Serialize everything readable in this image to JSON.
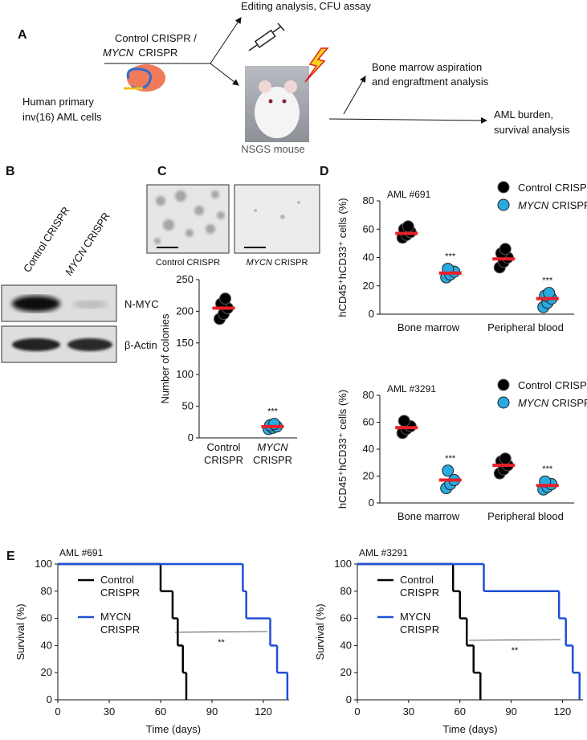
{
  "panel_labels": [
    "A",
    "B",
    "C",
    "D",
    "E"
  ],
  "schematic": {
    "treatment": [
      "Control CRISPR /",
      "MYCN",
      "CRISPR"
    ],
    "cells": [
      "Human primary",
      "inv(16) AML cells"
    ],
    "mouse": "NSGS mouse",
    "outcomes": [
      "Editing analysis, CFU assay",
      [
        "Bone marrow aspiration",
        "and engraftment analysis"
      ],
      [
        "AML burden,",
        "survival analysis"
      ]
    ]
  },
  "western_blot": {
    "lanes": [
      [
        "Control",
        "CRISPR"
      ],
      [
        "MYCN",
        "CRISPR"
      ]
    ],
    "bands": [
      "N-MYC",
      "β-Actin"
    ]
  },
  "micrographs": [
    [
      "Control",
      "CRISPR"
    ],
    [
      "MYCN",
      "CRISPR"
    ]
  ],
  "chart_data": [
    {
      "type": "dot",
      "ylabel": "Number of colonies",
      "categories": [
        [
          "Control",
          "CRISPR"
        ],
        [
          "MYCN",
          "CRISPR"
        ]
      ],
      "colors": [
        "#000000",
        "#29aae1"
      ],
      "values": [
        [
          188,
          196,
          205,
          212,
          220
        ],
        [
          14,
          16,
          18,
          20,
          22
        ]
      ],
      "means": [
        205,
        18
      ],
      "mean_color": "#e8202a",
      "significance": [
        null,
        "***"
      ],
      "ylim": [
        0,
        250
      ],
      "yticks": [
        0,
        50,
        100,
        150,
        200,
        250
      ]
    },
    {
      "type": "group-dot",
      "title": "AML #691",
      "ylabel": "hCD45⁺hCD33⁺ cells (%)",
      "categories": [
        "Bone marrow",
        "Peripheral blood"
      ],
      "mean_color": "#e8202a",
      "series": [
        {
          "name": [
            "Control",
            "CRISPR"
          ],
          "color": "#000000",
          "values": [
            [
              54,
              56,
              58,
              60,
              62
            ],
            [
              33,
              37,
              40,
              43,
              46
            ]
          ],
          "means": [
            57,
            39
          ]
        },
        {
          "name": [
            "MYCN",
            "CRISPR"
          ],
          "color": "#29aae1",
          "values": [
            [
              26,
              28,
              30,
              32
            ],
            [
              5,
              8,
              11,
              13,
              15
            ]
          ],
          "means": [
            29,
            11
          ],
          "significance": [
            "***",
            "***"
          ]
        }
      ],
      "ylim": [
        0,
        80
      ],
      "yticks": [
        0,
        20,
        40,
        60,
        80
      ]
    },
    {
      "type": "group-dot",
      "title": "AML #3291",
      "ylabel": "hCD45⁺hCD33⁺ cells (%)",
      "categories": [
        "Bone marrow",
        "Peripheral blood"
      ],
      "mean_color": "#e8202a",
      "series": [
        {
          "name": [
            "Control",
            "CRISPR"
          ],
          "color": "#000000",
          "values": [
            [
              52,
              55,
              57,
              61
            ],
            [
              22,
              25,
              28,
              31,
              33
            ]
          ],
          "means": [
            56,
            28
          ]
        },
        {
          "name": [
            "MYCN",
            "CRISPR"
          ],
          "color": "#29aae1",
          "values": [
            [
              11,
              14,
              17,
              24
            ],
            [
              10,
              12,
              14,
              16
            ]
          ],
          "means": [
            17,
            13
          ],
          "significance": [
            "***",
            "***"
          ]
        }
      ],
      "ylim": [
        0,
        80
      ],
      "yticks": [
        0,
        20,
        40,
        60,
        80
      ]
    },
    {
      "type": "survival",
      "title": "AML #691",
      "xlabel": "Time (days)",
      "ylabel": "Survival (%)",
      "series": [
        {
          "name": [
            "Control",
            "CRISPR"
          ],
          "color": "#000000",
          "x": [
            0,
            60,
            67,
            70,
            73,
            75
          ],
          "values": [
            100,
            80,
            60,
            40,
            20,
            0
          ]
        },
        {
          "name": [
            "MYCN",
            "CRISPR"
          ],
          "color": "#1f4fd6",
          "x": [
            0,
            108,
            110,
            124,
            128,
            134
          ],
          "values": [
            100,
            80,
            60,
            40,
            20,
            0
          ]
        }
      ],
      "significance": "**",
      "xlim": [
        0,
        135
      ],
      "xticks": [
        0,
        30,
        60,
        90,
        120
      ],
      "ylim": [
        0,
        100
      ],
      "yticks": [
        0,
        20,
        40,
        60,
        80,
        100
      ]
    },
    {
      "type": "survival",
      "title": "AML #3291",
      "xlabel": "Time (days)",
      "ylabel": "Survival (%)",
      "series": [
        {
          "name": [
            "Control",
            "CRISPR"
          ],
          "color": "#000000",
          "x": [
            0,
            56,
            60,
            64,
            68,
            72
          ],
          "values": [
            100,
            80,
            60,
            40,
            20,
            0
          ]
        },
        {
          "name": [
            "MYCN",
            "CRISPR"
          ],
          "color": "#1f4fd6",
          "x": [
            0,
            74,
            118,
            122,
            126,
            130
          ],
          "values": [
            100,
            80,
            60,
            40,
            20,
            0
          ]
        }
      ],
      "significance": "**",
      "xlim": [
        0,
        132
      ],
      "xticks": [
        0,
        30,
        60,
        90,
        120
      ],
      "ylim": [
        0,
        100
      ],
      "yticks": [
        0,
        20,
        40,
        60,
        80,
        100
      ]
    }
  ]
}
